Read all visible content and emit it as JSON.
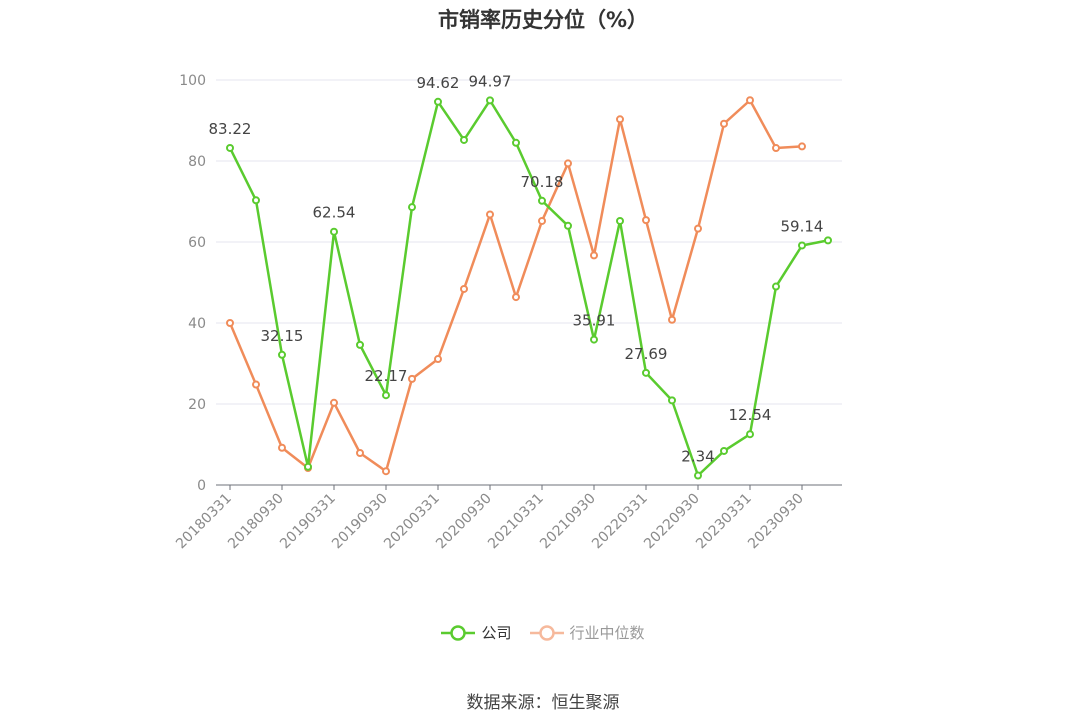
{
  "chart_data": {
    "type": "line",
    "title": "市销率历史分位（%）",
    "categories": [
      "20180331",
      "20180630",
      "20180930",
      "20181231",
      "20190331",
      "20190630",
      "20190930",
      "20191231",
      "20200331",
      "20200630",
      "20200930",
      "20201231",
      "20210331",
      "20210630",
      "20210930",
      "20211231",
      "20220331",
      "20220630",
      "20220930",
      "20221231",
      "20230331",
      "20230630",
      "20230930",
      "20231231"
    ],
    "x_tick_labels": [
      "20180331",
      "20180930",
      "20190331",
      "20190930",
      "20200331",
      "20200930",
      "20210331",
      "20210930",
      "20220331",
      "20220930",
      "20230331",
      "20230930"
    ],
    "ylim": [
      0,
      100
    ],
    "y_ticks": [
      "0",
      "20",
      "40",
      "60",
      "80",
      "100"
    ],
    "grid": true,
    "legend_position": "bottom",
    "series": [
      {
        "name": "公司",
        "color": "#5acb2f",
        "values": [
          83.22,
          70.3,
          32.15,
          4.5,
          62.54,
          34.6,
          22.17,
          68.6,
          94.62,
          85.2,
          94.97,
          84.5,
          70.18,
          64.0,
          35.91,
          65.2,
          27.69,
          20.9,
          2.34,
          8.4,
          12.54,
          49.0,
          59.14,
          60.4
        ],
        "labels": {
          "0": "83.22",
          "2": "32.15",
          "4": "62.54",
          "6": "22.17",
          "8": "94.62",
          "10": "94.97",
          "12": "70.18",
          "14": "35.91",
          "16": "27.69",
          "18": "2.34",
          "20": "12.54",
          "22": "59.14"
        }
      },
      {
        "name": "行业中位数",
        "color": "#f08c5a",
        "values": [
          40.0,
          24.8,
          9.2,
          4.2,
          20.3,
          7.9,
          3.4,
          26.2,
          31.1,
          48.4,
          66.8,
          46.4,
          65.2,
          79.4,
          56.7,
          90.3,
          65.4,
          40.8,
          63.3,
          89.2,
          95.0,
          83.2,
          83.6,
          null
        ]
      }
    ]
  },
  "legend": {
    "company": "公司",
    "industry": "行业中位数"
  },
  "source": "数据来源：恒生聚源"
}
